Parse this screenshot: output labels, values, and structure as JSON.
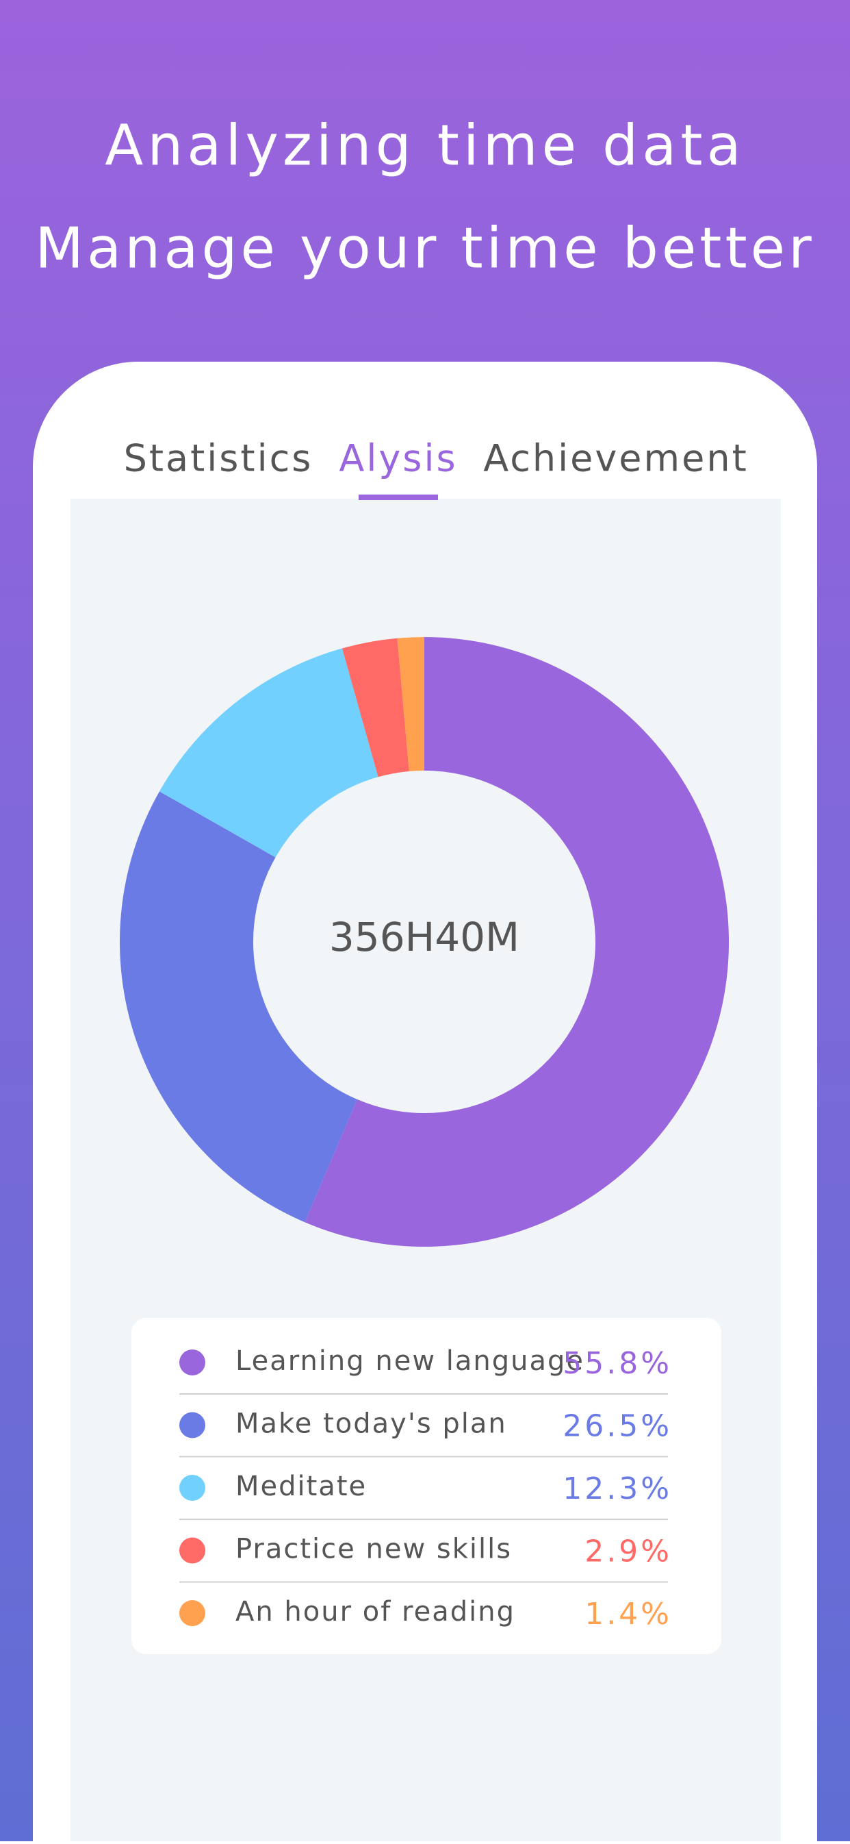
{
  "header": {
    "line1": "Analyzing time data",
    "line2": "Manage your time better"
  },
  "tabs": [
    "Statistics",
    "Alysis",
    "Achievement"
  ],
  "active_tab": 1,
  "chart_data": {
    "type": "pie",
    "donut": true,
    "center_label": "356H40M",
    "categories": [
      "Learning new language",
      "Make today's plan",
      "Meditate",
      "Practice new skills",
      "An hour of reading"
    ],
    "values": [
      55.8,
      26.5,
      12.3,
      2.9,
      1.4
    ],
    "value_labels": [
      "55.8%",
      "26.5%",
      "12.3%",
      "2.9%",
      "1.4%"
    ],
    "colors": [
      "#9966dd",
      "#6a7be5",
      "#71d0fd",
      "#ff6a66",
      "#ffa14f"
    ],
    "value_label_colors": [
      "#9966dd",
      "#6a7be5",
      "#6a7be5",
      "#ff6a66",
      "#ffa14f"
    ]
  }
}
